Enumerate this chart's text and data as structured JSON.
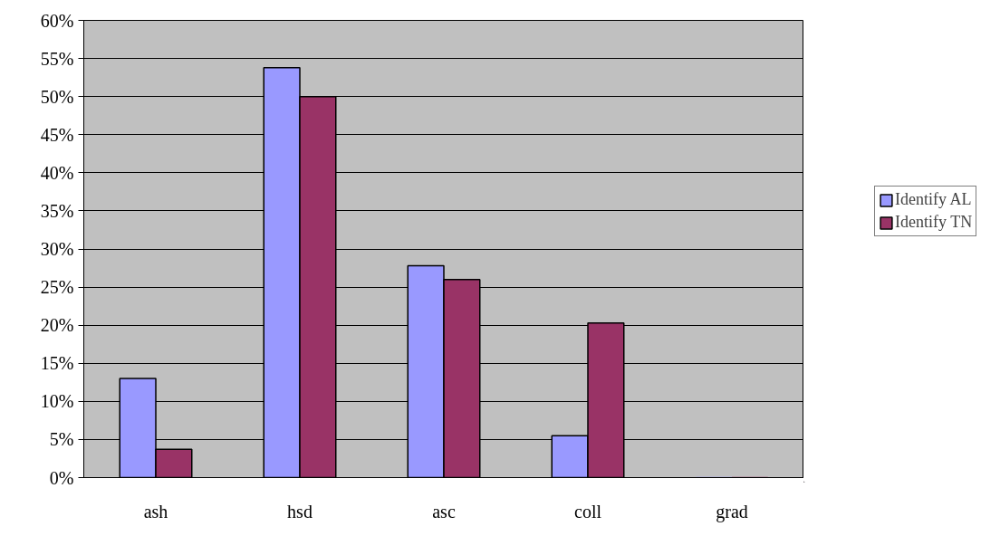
{
  "chart_data": {
    "type": "bar",
    "categories": [
      "ash",
      "hsd",
      "asc",
      "coll",
      "grad"
    ],
    "series": [
      {
        "name": "Identify AL",
        "color": "#9999ff",
        "values": [
          0.13,
          0.538,
          0.278,
          0.055,
          0
        ]
      },
      {
        "name": "Identify TN",
        "color": "#993366",
        "values": [
          0.037,
          0.5,
          0.26,
          0.203,
          0
        ]
      }
    ],
    "ylim": [
      0,
      0.6
    ],
    "yticks": [
      {
        "value": 0,
        "label": "0%"
      },
      {
        "value": 0.05,
        "label": "5%"
      },
      {
        "value": 0.1,
        "label": "10%"
      },
      {
        "value": 0.15,
        "label": "15%"
      },
      {
        "value": 0.2,
        "label": "20%"
      },
      {
        "value": 0.25,
        "label": "25%"
      },
      {
        "value": 0.3,
        "label": "30%"
      },
      {
        "value": 0.35,
        "label": "35%"
      },
      {
        "value": 0.4,
        "label": "40%"
      },
      {
        "value": 0.45,
        "label": "45%"
      },
      {
        "value": 0.5,
        "label": "50%"
      },
      {
        "value": 0.55,
        "label": "55%"
      },
      {
        "value": 0.6,
        "label": "60%"
      }
    ],
    "grid": "y",
    "legend": "right"
  }
}
